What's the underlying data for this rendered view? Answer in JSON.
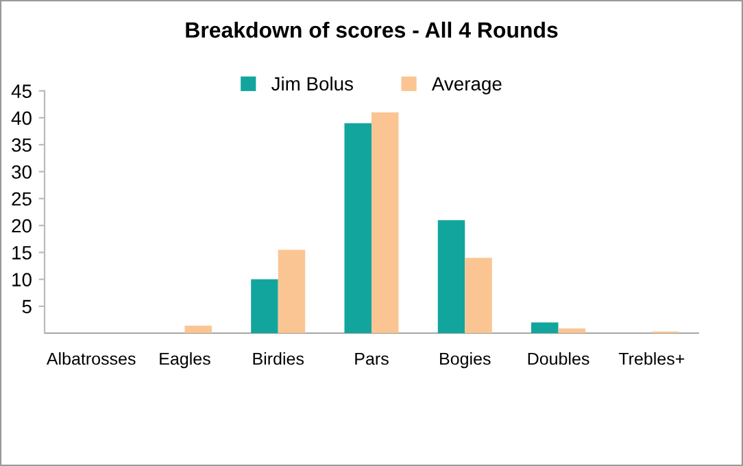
{
  "chart_data": {
    "type": "bar",
    "title": "Breakdown of scores - All 4 Rounds",
    "categories": [
      "Albatrosses",
      "Eagles",
      "Birdies",
      "Pars",
      "Bogies",
      "Doubles",
      "Trebles+"
    ],
    "series": [
      {
        "name": "Jim Bolus",
        "color": "#12a59e",
        "values": [
          0,
          0,
          10,
          39,
          21,
          2,
          0
        ]
      },
      {
        "name": "Average",
        "color": "#fbc593",
        "values": [
          0,
          1.4,
          15.5,
          41,
          14,
          0.9,
          0.3
        ]
      }
    ],
    "ylim": [
      0,
      45
    ],
    "yticks": [
      5,
      10,
      15,
      20,
      25,
      30,
      35,
      40,
      45
    ],
    "grid": false,
    "legend": "top"
  }
}
